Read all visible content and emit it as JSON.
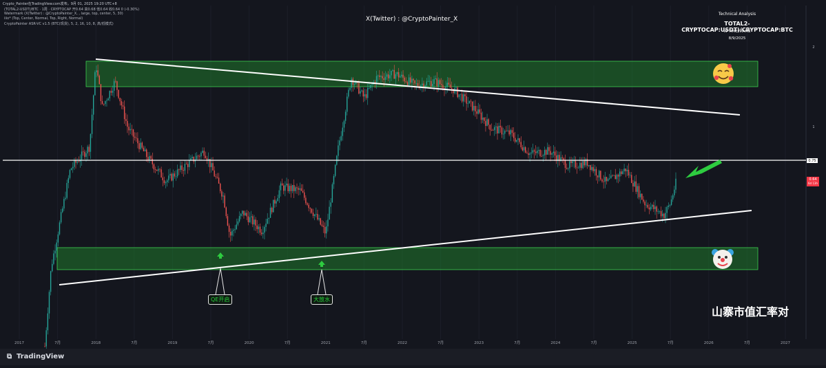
{
  "header": {
    "top_line": "Crypto_Painter在TradingView.com发布，9月 01, 2025 19:20 UTC+8",
    "legend_lines": [
      "(TOTAL2-USDT)/BTC · 1周 · CRYPTOCAP  开0.64  高0.68  低0.64  收0.64  0 (-0.30%)",
      "Watermark (X(Twitter) : @CryptoPainter_X, , large, top, center, 5, 30)",
      "iiio* (Top, Center, Normal, Top, Right, Normal)",
      "CryptoPainter ASR-VC v1.5 (BTC(现货), 5, 2, 16, 10, 8, 高/低模式)"
    ]
  },
  "watermark": "X(Twitter) : @CryptoPainter_X",
  "technical_analysis": {
    "title": "Technical Analysis",
    "symbol": "TOTAL2-CRYPTOCAP:USDT)/CRYPTOCAP:BTC",
    "timeframe": "W TIMEFRAME",
    "date": "8/9/2025"
  },
  "annotations": {
    "qe_label": "QE开启",
    "flood_label": "大放水",
    "chinese_title": "山寨市值汇率对",
    "happy_face_icon": "smiling-face-with-hearts",
    "clown_icon": "clown-face"
  },
  "price_scale": {
    "ticks": [
      "2",
      "1",
      "0.75"
    ],
    "last_price": "0.64",
    "countdown": "6d 13h"
  },
  "footer": {
    "brand": "TradingView"
  },
  "colors": {
    "background": "#14161e",
    "up_candle": "#26a69a",
    "down_candle": "#ef5350",
    "zone_fill": "#1f7a2c",
    "zone_border": "#3ecf52",
    "trendline": "#ffffff",
    "arrow_green": "#2ecc40",
    "price_badge": "#f23645"
  },
  "chart_data": {
    "type": "line",
    "title": "",
    "scale": "log",
    "x_ticks": [
      "2017",
      "7月",
      "2018",
      "7月",
      "2019",
      "7月",
      "2020",
      "7月",
      "2021",
      "7月",
      "2022",
      "7月",
      "2023",
      "7月",
      "2024",
      "7月",
      "2025",
      "7月",
      "2026",
      "7月",
      "2027"
    ],
    "ylabel": "",
    "ylim": [
      0.14,
      2.15
    ],
    "horizontal_level": 0.75,
    "last_value": 0.64,
    "series": [
      {
        "x": [
          "2017-05",
          "2017-06",
          "2017-09",
          "2017-12",
          "2018-01",
          "2018-02",
          "2018-04",
          "2018-06",
          "2018-09",
          "2018-12",
          "2019-03",
          "2019-06",
          "2019-09",
          "2019-10",
          "2019-12",
          "2020-03",
          "2020-06",
          "2020-09",
          "2020-12",
          "2021-01",
          "2021-03",
          "2021-05",
          "2021-07",
          "2021-09",
          "2021-12",
          "2022-03",
          "2022-06",
          "2022-09",
          "2022-12",
          "2023-03",
          "2023-06",
          "2023-09",
          "2023-12",
          "2024-03",
          "2024-06",
          "2024-09",
          "2024-12",
          "2025-03",
          "2025-06",
          "2025-07",
          "2025-08"
        ],
        "values": [
          0.15,
          0.3,
          0.7,
          0.85,
          1.75,
          1.2,
          1.5,
          1.0,
          0.78,
          0.63,
          0.72,
          0.82,
          0.55,
          0.39,
          0.48,
          0.41,
          0.6,
          0.58,
          0.44,
          0.4,
          0.85,
          1.55,
          1.3,
          1.55,
          1.6,
          1.45,
          1.5,
          1.4,
          1.2,
          1.0,
          0.95,
          0.8,
          0.82,
          0.72,
          0.74,
          0.62,
          0.7,
          0.52,
          0.47,
          0.52,
          0.64
        ]
      }
    ]
  }
}
